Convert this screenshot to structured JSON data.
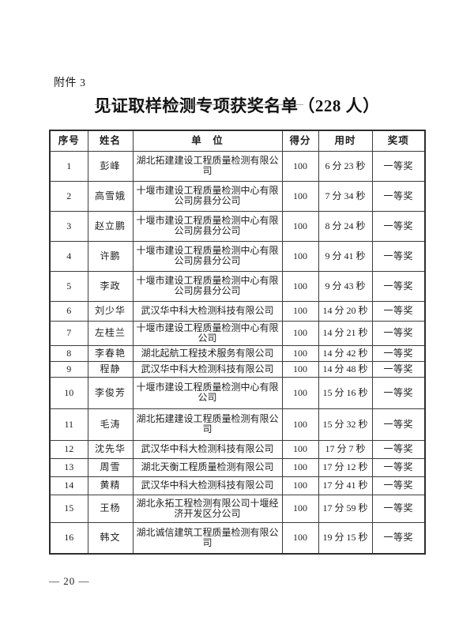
{
  "document": {
    "attachment_label": "附件 3",
    "title": "见证取样检测专项获奖名单（228 人）",
    "page_number": "— 20 —"
  },
  "colors": {
    "text": "#1f1f1f",
    "border": "#3d3d3d",
    "background": "#ffffff"
  },
  "table": {
    "headers": [
      "序号",
      "姓名",
      "单　位",
      "得分",
      "用时",
      "奖项"
    ],
    "rows": [
      {
        "no": "1",
        "name": "彭峰",
        "unit": "湖北拓建建设工程质量检测有限公司",
        "score": "100",
        "time": "6 分 23 秒",
        "award": "一等奖"
      },
      {
        "no": "2",
        "name": "高雪娥",
        "unit": "十堰市建设工程质量检测中心有限公司房县分公司",
        "score": "100",
        "time": "7 分 34 秒",
        "award": "一等奖"
      },
      {
        "no": "3",
        "name": "赵立鹏",
        "unit": "十堰市建设工程质量检测中心有限公司房县分公司",
        "score": "100",
        "time": "8 分 24 秒",
        "award": "一等奖"
      },
      {
        "no": "4",
        "name": "许鹏",
        "unit": "十堰市建设工程质量检测中心有限公司房县分公司",
        "score": "100",
        "time": "9 分 41 秒",
        "award": "一等奖"
      },
      {
        "no": "5",
        "name": "李政",
        "unit": "十堰市建设工程质量检测中心有限公司房县分公司",
        "score": "100",
        "time": "9 分 43 秒",
        "award": "一等奖"
      },
      {
        "no": "6",
        "name": "刘少华",
        "unit": "武汉华中科大检测科技有限公司",
        "score": "100",
        "time": "14 分 20 秒",
        "award": "一等奖"
      },
      {
        "no": "7",
        "name": "左桂兰",
        "unit": "十堰市建设工程质量检测中心有限公司",
        "score": "100",
        "time": "14 分 21 秒",
        "award": "一等奖"
      },
      {
        "no": "8",
        "name": "李春艳",
        "unit": "湖北起航工程技术服务有限公司",
        "score": "100",
        "time": "14 分 42 秒",
        "award": "一等奖"
      },
      {
        "no": "9",
        "name": "程静",
        "unit": "武汉华中科大检测科技有限公司",
        "score": "100",
        "time": "14 分 48 秒",
        "award": "一等奖"
      },
      {
        "no": "10",
        "name": "李俊芳",
        "unit": "十堰市建设工程质量检测中心有限公司",
        "score": "100",
        "time": "15 分 16 秒",
        "award": "一等奖"
      },
      {
        "no": "11",
        "name": "毛涛",
        "unit": "湖北拓建建设工程质量检测有限公司",
        "score": "100",
        "time": "15 分 32 秒",
        "award": "一等奖"
      },
      {
        "no": "12",
        "name": "沈先华",
        "unit": "武汉华中科大检测科技有限公司",
        "score": "100",
        "time": "17 分 7 秒",
        "award": "一等奖"
      },
      {
        "no": "13",
        "name": "周雪",
        "unit": "湖北天衡工程质量检测有限公司",
        "score": "100",
        "time": "17 分 12 秒",
        "award": "一等奖"
      },
      {
        "no": "14",
        "name": "黄精",
        "unit": "武汉华中科大检测科技有限公司",
        "score": "100",
        "time": "17 分 41 秒",
        "award": "一等奖"
      },
      {
        "no": "15",
        "name": "王杨",
        "unit": "湖北永拓工程检测有限公司十堰经济开发区分公司",
        "score": "100",
        "time": "17 分 59 秒",
        "award": "一等奖"
      },
      {
        "no": "16",
        "name": "韩文",
        "unit": "湖北诚信建筑工程质量检测有限公司",
        "score": "100",
        "time": "19 分 15 秒",
        "award": "一等奖"
      }
    ]
  }
}
